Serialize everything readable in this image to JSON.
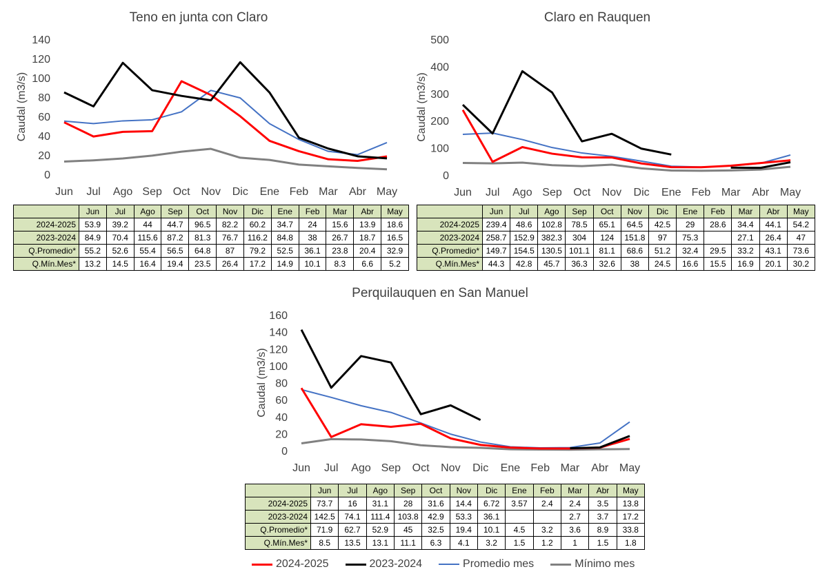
{
  "months": [
    "Jun",
    "Jul",
    "Ago",
    "Sep",
    "Oct",
    "Nov",
    "Dic",
    "Ene",
    "Feb",
    "Mar",
    "Abr",
    "May"
  ],
  "legend": [
    {
      "label": "2024-2025",
      "color": "#ff0000"
    },
    {
      "label": "2023-2024",
      "color": "#000000"
    },
    {
      "label": "Promedio mes",
      "color": "#4472c4"
    },
    {
      "label": "Mínimo mes",
      "color": "#808080"
    }
  ],
  "table_row_labels": [
    "2024-2025",
    "2023-2024",
    "Q.Promedio*",
    "Q.Mín.Mes*"
  ],
  "chart_data": [
    {
      "type": "line",
      "title": "Teno en junta con Claro",
      "ylabel": "Caudal (m3/s)",
      "ylim": [
        0,
        140
      ],
      "yticks": [
        0,
        20,
        40,
        60,
        80,
        100,
        120,
        140
      ],
      "categories": [
        "Jun",
        "Jul",
        "Ago",
        "Sep",
        "Oct",
        "Nov",
        "Dic",
        "Ene",
        "Feb",
        "Mar",
        "Abr",
        "May"
      ],
      "series": [
        {
          "name": "2024-2025",
          "color": "#ff0000",
          "values": [
            53.9,
            39.2,
            44,
            44.7,
            96.5,
            82.2,
            60.2,
            34.7,
            24,
            15.6,
            13.9,
            18.6
          ]
        },
        {
          "name": "2023-2024",
          "color": "#000000",
          "values": [
            84.9,
            70.4,
            115.6,
            87.2,
            81.3,
            76.7,
            116.2,
            84.8,
            38,
            26.7,
            18.7,
            16.5
          ]
        },
        {
          "name": "Q.Promedio*",
          "color": "#4472c4",
          "values": [
            55.2,
            52.6,
            55.4,
            56.5,
            64.8,
            87,
            79.2,
            52.5,
            36.1,
            23.8,
            20.4,
            32.9
          ]
        },
        {
          "name": "Q.Mín.Mes*",
          "color": "#808080",
          "values": [
            13.2,
            14.5,
            16.4,
            19.4,
            23.5,
            26.4,
            17.2,
            14.9,
            10.1,
            8.3,
            6.6,
            5.2
          ]
        }
      ]
    },
    {
      "type": "line",
      "title": "Claro en Rauquen",
      "ylabel": "Caudal (m3/s)",
      "ylim": [
        0,
        500
      ],
      "yticks": [
        0,
        100,
        200,
        300,
        400,
        500
      ],
      "categories": [
        "Jun",
        "Jul",
        "Ago",
        "Sep",
        "Oct",
        "Nov",
        "Dic",
        "Ene",
        "Feb",
        "Mar",
        "Abr",
        "May"
      ],
      "series": [
        {
          "name": "2024-2025",
          "color": "#ff0000",
          "values": [
            239.4,
            48.6,
            102.8,
            78.5,
            65.1,
            64.5,
            42.5,
            29,
            28.6,
            34.4,
            44.1,
            54.2
          ]
        },
        {
          "name": "2023-2024",
          "color": "#000000",
          "values": [
            258.7,
            152.9,
            382.3,
            304,
            124,
            151.8,
            97,
            75.3,
            null,
            27.1,
            26.4,
            47
          ]
        },
        {
          "name": "Q.Promedio*",
          "color": "#4472c4",
          "values": [
            149.7,
            154.5,
            130.5,
            101.1,
            81.1,
            68.6,
            51.2,
            32.4,
            29.5,
            33.2,
            43.1,
            73.6
          ]
        },
        {
          "name": "Q.Mín.Mes*",
          "color": "#808080",
          "values": [
            44.3,
            42.8,
            45.7,
            36.3,
            32.6,
            38,
            24.5,
            16.6,
            15.5,
            16.9,
            20.1,
            30.2
          ]
        }
      ]
    },
    {
      "type": "line",
      "title": "Perquilauquen en San Manuel",
      "ylabel": "Caudal (m3/s)",
      "ylim": [
        0,
        160
      ],
      "yticks": [
        0,
        20,
        40,
        60,
        80,
        100,
        120,
        140,
        160
      ],
      "categories": [
        "Jun",
        "Jul",
        "Ago",
        "Sep",
        "Oct",
        "Nov",
        "Dic",
        "Ene",
        "Feb",
        "Mar",
        "Abr",
        "May"
      ],
      "series": [
        {
          "name": "2024-2025",
          "color": "#ff0000",
          "values": [
            73.7,
            16,
            31.1,
            28,
            31.6,
            14.4,
            6.72,
            3.57,
            2.4,
            2.4,
            3.5,
            13.8
          ]
        },
        {
          "name": "2023-2024",
          "color": "#000000",
          "values": [
            142.5,
            74.1,
            111.4,
            103.8,
            42.9,
            53.3,
            36.1,
            null,
            null,
            2.7,
            3.7,
            17.2
          ]
        },
        {
          "name": "Q.Promedio*",
          "color": "#4472c4",
          "values": [
            71.9,
            62.7,
            52.9,
            45,
            32.5,
            19.4,
            10.1,
            4.5,
            3.2,
            3.6,
            8.9,
            33.8
          ]
        },
        {
          "name": "Q.Mín.Mes*",
          "color": "#808080",
          "values": [
            8.5,
            13.5,
            13.1,
            11.1,
            6.3,
            4.1,
            3.2,
            1.5,
            1.2,
            1,
            1.5,
            1.8
          ]
        }
      ]
    }
  ]
}
